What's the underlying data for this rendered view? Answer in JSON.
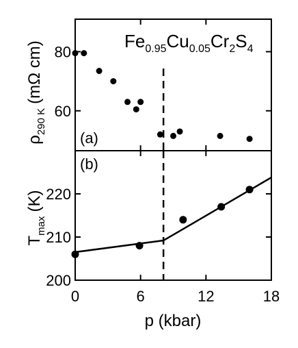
{
  "chart_data": [
    {
      "panel": "(a)",
      "type": "scatter",
      "title": "",
      "formula": {
        "parts": [
          {
            "text": "Fe",
            "sub": "0.95"
          },
          {
            "text": "Cu",
            "sub": "0.05"
          },
          {
            "text": "Cr",
            "sub": "2"
          },
          {
            "text": "S",
            "sub": "4"
          }
        ]
      },
      "ylabel": {
        "main": "ρ",
        "sub": "290 K",
        "unit": "(mΩ cm)"
      },
      "xlim": [
        0,
        18
      ],
      "ylim": [
        46.5,
        91
      ],
      "yticks": [
        60,
        80
      ],
      "points": [
        {
          "x": 0.0,
          "y": 79.5
        },
        {
          "x": 0.8,
          "y": 79.5
        },
        {
          "x": 2.2,
          "y": 73.5
        },
        {
          "x": 3.5,
          "y": 70.0
        },
        {
          "x": 4.8,
          "y": 63.0
        },
        {
          "x": 5.6,
          "y": 60.5
        },
        {
          "x": 6.0,
          "y": 63.0
        },
        {
          "x": 7.8,
          "y": 52.0
        },
        {
          "x": 9.0,
          "y": 51.5
        },
        {
          "x": 9.6,
          "y": 53.0
        },
        {
          "x": 13.3,
          "y": 51.5
        },
        {
          "x": 16.0,
          "y": 50.5
        }
      ],
      "vline_x": 8.1
    },
    {
      "panel": "(b)",
      "type": "scatter",
      "title": "",
      "xlabel": "p (kbar)",
      "ylabel": {
        "main": "T",
        "sub": "max",
        "unit": "(K)"
      },
      "xlim": [
        0,
        18
      ],
      "ylim": [
        200,
        230
      ],
      "xticks": [
        0,
        6,
        12,
        18
      ],
      "yticks": [
        200,
        210,
        220
      ],
      "points": [
        {
          "x": 0.0,
          "y": 206.0
        },
        {
          "x": 5.9,
          "y": 208.0
        },
        {
          "x": 9.9,
          "y": 214.0
        },
        {
          "x": 13.4,
          "y": 217.0
        },
        {
          "x": 16.0,
          "y": 221.0
        }
      ],
      "fit_line": [
        {
          "x": 0.0,
          "y": 206.5
        },
        {
          "x": 8.1,
          "y": 209.2
        },
        {
          "x": 18.0,
          "y": 223.8
        }
      ],
      "vline_x": 8.1
    }
  ]
}
